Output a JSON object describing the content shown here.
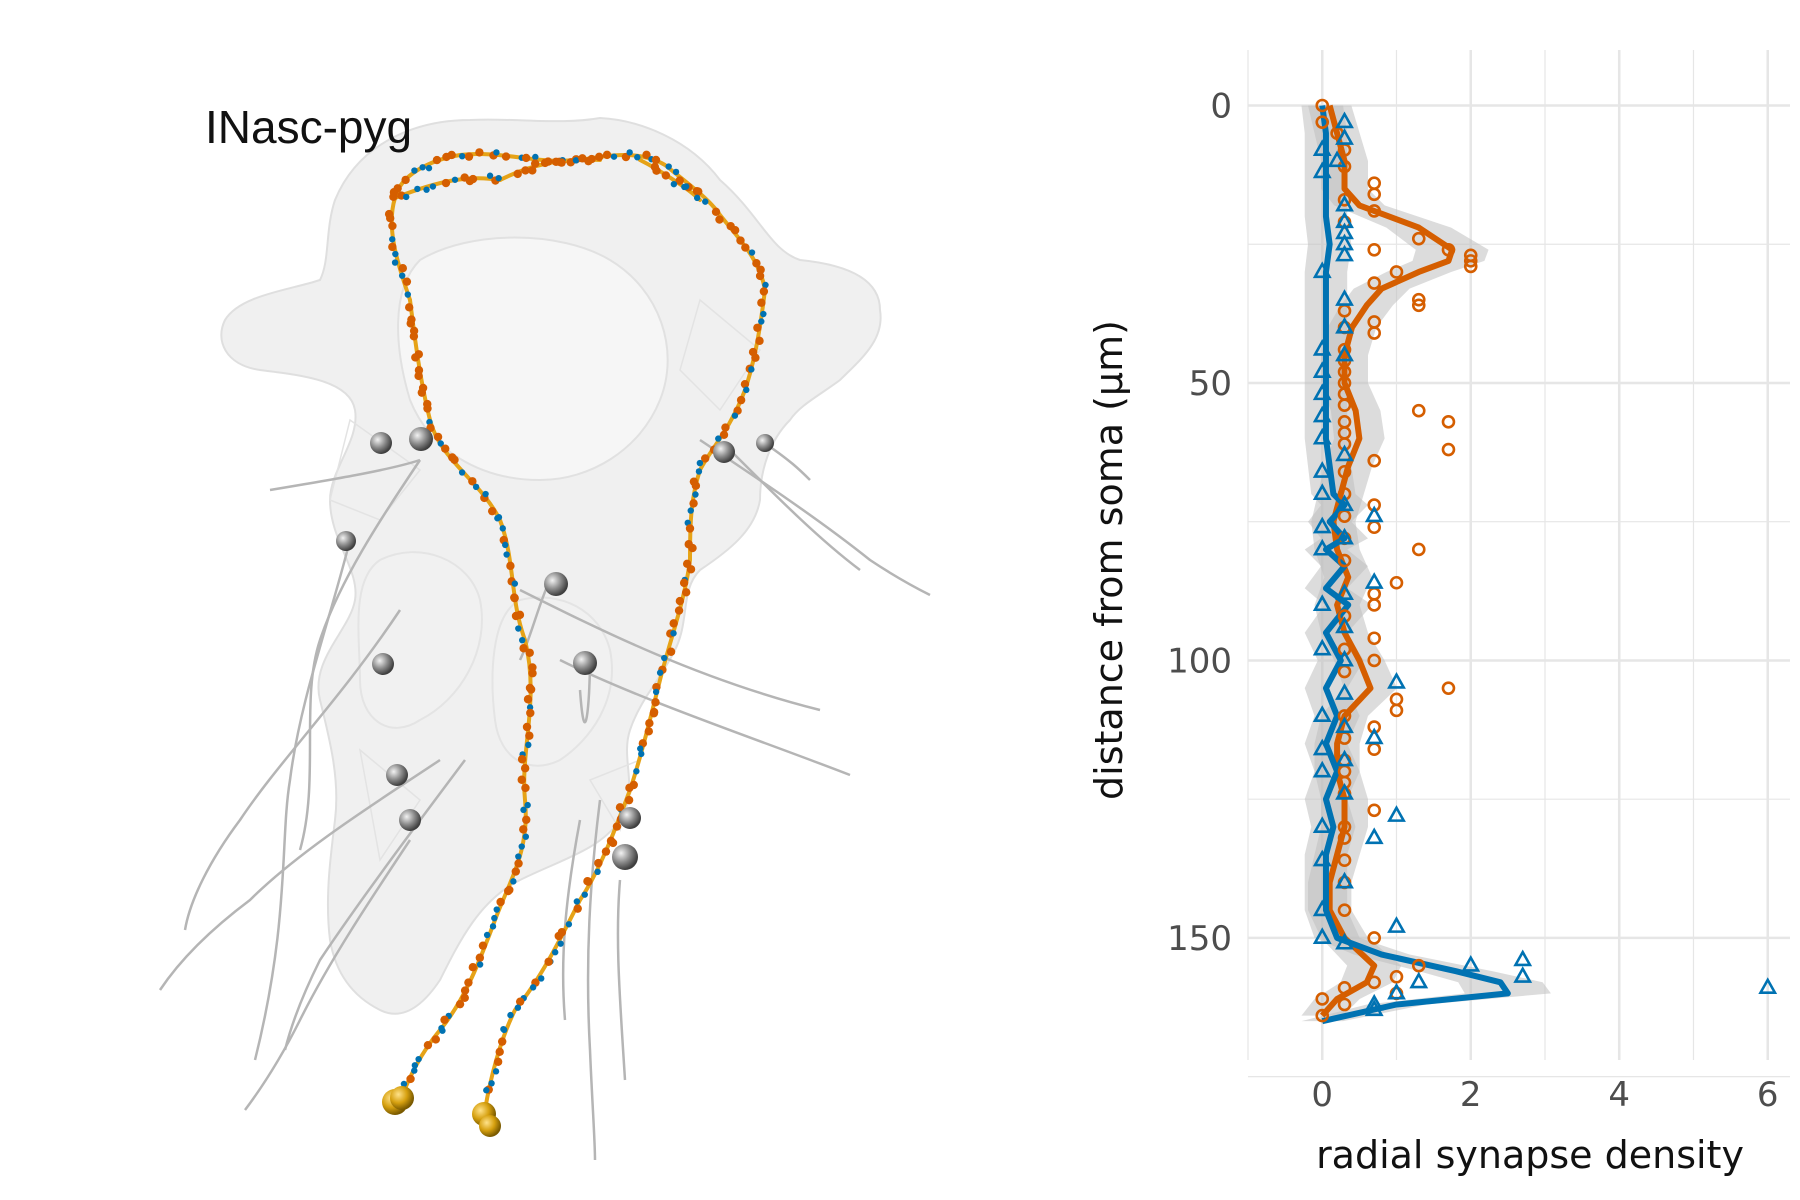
{
  "neuron_panel": {
    "label": "INasc-pyg"
  },
  "colors": {
    "presynapse": "#d55e00",
    "postsynapse": "#0072b2",
    "skeleton": "#e6a317",
    "mesh": "#bdbdbd",
    "band": "#bfbfbf",
    "grid": "#e6e6e6"
  },
  "chart_data": {
    "type": "line",
    "xlabel": "radial synapse density",
    "ylabel": "distance from soma (μm)",
    "xlim": [
      -1,
      6.3
    ],
    "ylim": [
      172,
      -10
    ],
    "y_reversed": true,
    "xticks": [
      0,
      2,
      4,
      6
    ],
    "yticks": [
      0,
      50,
      100,
      150
    ],
    "grid": true,
    "legend": "none",
    "series": [
      {
        "marker": "circle",
        "color": "#d55e00",
        "line_y": [
          0,
          5,
          10,
          15,
          18,
          22,
          26,
          28,
          30,
          33,
          36,
          40,
          45,
          50,
          55,
          60,
          65,
          70,
          75,
          80,
          85,
          90,
          95,
          100,
          105,
          110,
          115,
          120,
          125,
          130,
          135,
          140,
          145,
          150,
          155,
          158,
          161,
          164
        ],
        "line_x": [
          0.1,
          0.2,
          0.3,
          0.3,
          0.5,
          1.3,
          1.75,
          1.7,
          1.3,
          0.8,
          0.6,
          0.4,
          0.3,
          0.3,
          0.45,
          0.5,
          0.35,
          0.25,
          0.15,
          0.2,
          0.35,
          0.2,
          0.3,
          0.5,
          0.65,
          0.3,
          0.2,
          0.2,
          0.3,
          0.3,
          0.2,
          0.1,
          0.1,
          0.3,
          0.7,
          0.6,
          0.2,
          0
        ],
        "points": [
          [
            0,
            0
          ],
          [
            0,
            3
          ],
          [
            0.2,
            5
          ],
          [
            0.3,
            8
          ],
          [
            0.3,
            11
          ],
          [
            0.7,
            14
          ],
          [
            0.7,
            16
          ],
          [
            0.3,
            17
          ],
          [
            0.7,
            19
          ],
          [
            0.3,
            21
          ],
          [
            1.3,
            24
          ],
          [
            1.7,
            26
          ],
          [
            2.0,
            27
          ],
          [
            2.0,
            28
          ],
          [
            2.0,
            29
          ],
          [
            0.7,
            26
          ],
          [
            1.0,
            30
          ],
          [
            0.7,
            32
          ],
          [
            1.3,
            35
          ],
          [
            1.3,
            36
          ],
          [
            0.3,
            37
          ],
          [
            0.7,
            39
          ],
          [
            0.3,
            40
          ],
          [
            0.7,
            41
          ],
          [
            0.3,
            44
          ],
          [
            0.3,
            46
          ],
          [
            0.3,
            48
          ],
          [
            0.3,
            50
          ],
          [
            0.3,
            52
          ],
          [
            0.3,
            54
          ],
          [
            1.3,
            55
          ],
          [
            1.7,
            57
          ],
          [
            0.3,
            57
          ],
          [
            0.3,
            59
          ],
          [
            1.7,
            62
          ],
          [
            0.3,
            61
          ],
          [
            0.7,
            64
          ],
          [
            0.3,
            66
          ],
          [
            0.3,
            70
          ],
          [
            0.7,
            72
          ],
          [
            0.3,
            74
          ],
          [
            0.7,
            76
          ],
          [
            0.3,
            78
          ],
          [
            1.3,
            80
          ],
          [
            0.3,
            82
          ],
          [
            1.0,
            86
          ],
          [
            0.7,
            88
          ],
          [
            0.7,
            90
          ],
          [
            0.3,
            92
          ],
          [
            0.7,
            96
          ],
          [
            0.3,
            98
          ],
          [
            0.7,
            100
          ],
          [
            0.3,
            102
          ],
          [
            1.7,
            105
          ],
          [
            1.0,
            107
          ],
          [
            1.0,
            109
          ],
          [
            0.3,
            110
          ],
          [
            0.7,
            112
          ],
          [
            0.3,
            114
          ],
          [
            0.7,
            116
          ],
          [
            0.3,
            118
          ],
          [
            0.3,
            120
          ],
          [
            0.3,
            122
          ],
          [
            0.3,
            124
          ],
          [
            0.7,
            127
          ],
          [
            0.3,
            130
          ],
          [
            0.3,
            132
          ],
          [
            0.3,
            136
          ],
          [
            0.3,
            140
          ],
          [
            0.3,
            145
          ],
          [
            0.7,
            150
          ],
          [
            1.3,
            155
          ],
          [
            1.0,
            157
          ],
          [
            0.7,
            158
          ],
          [
            0.3,
            159
          ],
          [
            1.0,
            160
          ],
          [
            0,
            161
          ],
          [
            0.3,
            162
          ],
          [
            0,
            164
          ]
        ]
      },
      {
        "marker": "triangle",
        "color": "#0072b2",
        "line_y": [
          0,
          5,
          10,
          20,
          25,
          30,
          40,
          50,
          60,
          65,
          70,
          72,
          75,
          78,
          80,
          83,
          87,
          90,
          95,
          100,
          105,
          110,
          115,
          120,
          125,
          130,
          135,
          140,
          145,
          150,
          153,
          156,
          158,
          160,
          162,
          165
        ],
        "line_x": [
          0,
          0.05,
          0.05,
          0.05,
          0.1,
          0.05,
          0.05,
          0.05,
          0.05,
          0.1,
          0.15,
          0.3,
          0.1,
          0.3,
          0.05,
          0.3,
          0.05,
          0.35,
          0.05,
          0.25,
          0.05,
          0.2,
          0.05,
          0.2,
          0.05,
          0.15,
          0.05,
          0.05,
          0.05,
          0.2,
          0.8,
          1.8,
          2.4,
          2.5,
          1.0,
          0
        ],
        "points": [
          [
            0.3,
            3
          ],
          [
            0.3,
            6
          ],
          [
            0,
            8
          ],
          [
            0.2,
            10
          ],
          [
            0,
            12
          ],
          [
            0.3,
            18
          ],
          [
            0.3,
            21
          ],
          [
            0.3,
            23
          ],
          [
            0.3,
            25
          ],
          [
            0.3,
            27
          ],
          [
            0,
            30
          ],
          [
            0.3,
            35
          ],
          [
            0.3,
            40
          ],
          [
            0,
            44
          ],
          [
            0.3,
            45
          ],
          [
            0,
            48
          ],
          [
            0,
            52
          ],
          [
            0,
            56
          ],
          [
            0,
            60
          ],
          [
            0.3,
            63
          ],
          [
            0,
            66
          ],
          [
            0,
            70
          ],
          [
            0.3,
            72
          ],
          [
            0.7,
            74
          ],
          [
            0,
            76
          ],
          [
            0.3,
            78
          ],
          [
            0,
            80
          ],
          [
            0.7,
            86
          ],
          [
            0.3,
            88
          ],
          [
            0,
            90
          ],
          [
            0.3,
            94
          ],
          [
            0,
            98
          ],
          [
            0.3,
            100
          ],
          [
            1.0,
            104
          ],
          [
            0.3,
            106
          ],
          [
            0,
            110
          ],
          [
            0.3,
            112
          ],
          [
            0.7,
            114
          ],
          [
            0,
            116
          ],
          [
            0.3,
            118
          ],
          [
            0,
            120
          ],
          [
            0.3,
            124
          ],
          [
            1.0,
            128
          ],
          [
            0,
            130
          ],
          [
            0.7,
            132
          ],
          [
            0,
            136
          ],
          [
            0.3,
            140
          ],
          [
            0,
            145
          ],
          [
            1.0,
            148
          ],
          [
            0,
            150
          ],
          [
            0.3,
            151
          ],
          [
            2.7,
            154
          ],
          [
            2.0,
            155
          ],
          [
            2.7,
            157
          ],
          [
            1.3,
            158
          ],
          [
            6.0,
            159
          ],
          [
            1.0,
            160
          ],
          [
            0.7,
            162
          ],
          [
            0.7,
            163
          ]
        ]
      }
    ]
  }
}
